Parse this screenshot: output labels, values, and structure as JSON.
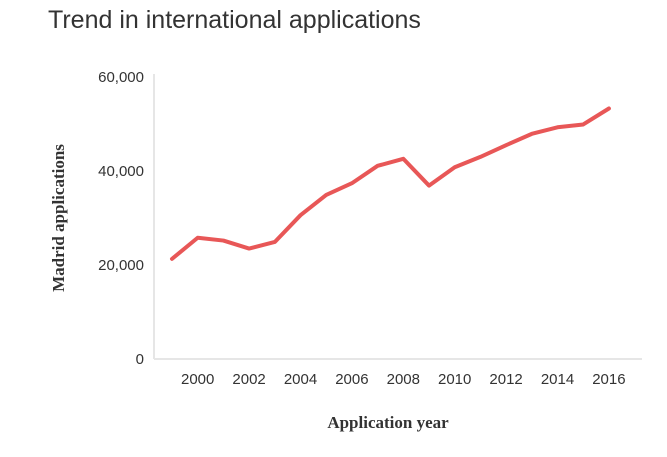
{
  "chart_data": {
    "type": "line",
    "title": "Trend in international applications",
    "xlabel": "Application year",
    "ylabel": "Madrid applications",
    "ylim": [
      0,
      60000
    ],
    "xlim": [
      1999,
      2016
    ],
    "yticks": [
      "0",
      "20,000",
      "40,000",
      "60,000"
    ],
    "ytick_values": [
      0,
      20000,
      40000,
      60000
    ],
    "xticks": [
      "2000",
      "2002",
      "2004",
      "2006",
      "2008",
      "2010",
      "2012",
      "2014",
      "2016"
    ],
    "xtick_values": [
      2000,
      2002,
      2004,
      2006,
      2008,
      2010,
      2012,
      2014,
      2016
    ],
    "grid": false,
    "series": [
      {
        "name": "Madrid applications",
        "color": "#e85757",
        "x": [
          1999,
          2000,
          2001,
          2002,
          2003,
          2004,
          2005,
          2006,
          2007,
          2008,
          2009,
          2010,
          2011,
          2012,
          2013,
          2014,
          2015,
          2016
        ],
        "values": [
          21300,
          25800,
          25200,
          23500,
          24900,
          30600,
          34900,
          37400,
          41100,
          42600,
          36900,
          40800,
          43000,
          45500,
          47900,
          49300,
          49900,
          53300
        ]
      }
    ]
  }
}
